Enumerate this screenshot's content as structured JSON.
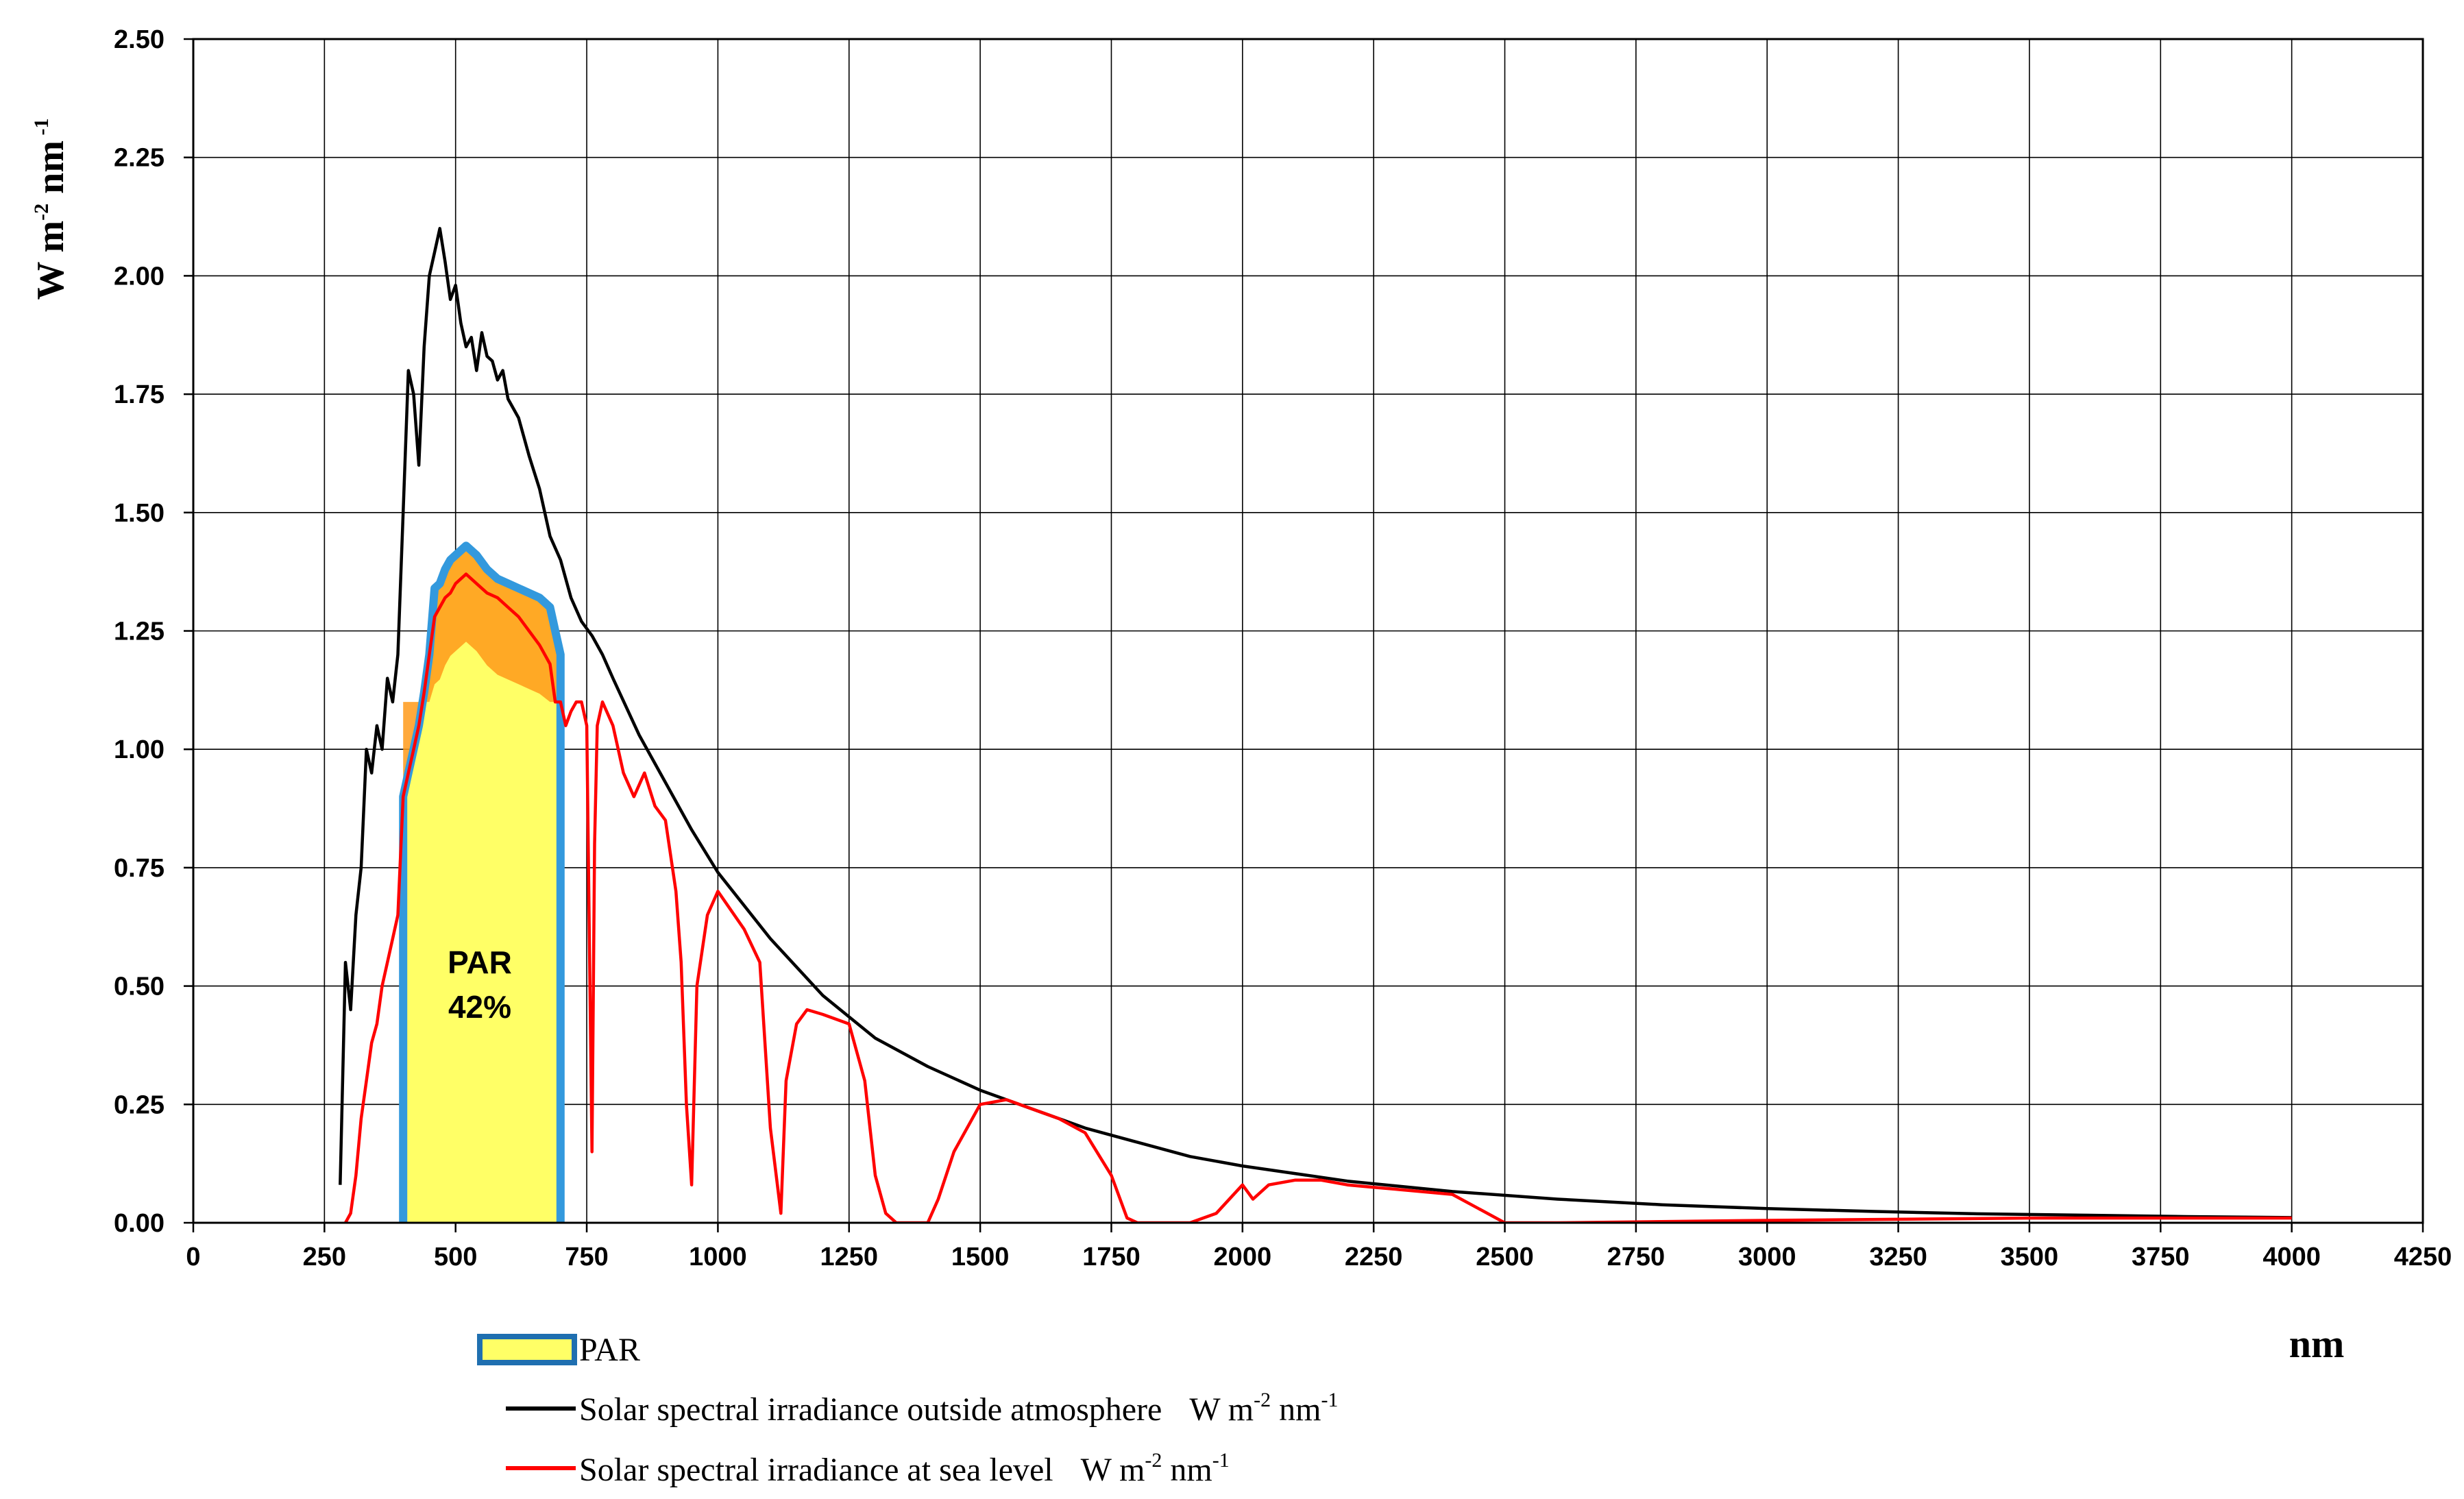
{
  "chart_data": {
    "type": "line",
    "xlabel": "nm",
    "ylabel": {
      "base1": "W m",
      "sup1": "-2",
      "base2": " nm",
      "sup2": " -1"
    },
    "xlim": [
      0,
      4250
    ],
    "ylim": [
      0,
      2.5
    ],
    "xticks": [
      "0",
      "250",
      "500",
      "750",
      "1000",
      "1250",
      "1500",
      "1750",
      "2000",
      "2250",
      "2500",
      "2750",
      "3000",
      "3250",
      "3500",
      "3750",
      "4000",
      "4250"
    ],
    "yticks": [
      "0.00",
      "0.25",
      "0.50",
      "0.75",
      "1.00",
      "1.25",
      "1.50",
      "1.75",
      "2.00",
      "2.25",
      "2.50"
    ],
    "grid": true,
    "legend_position": "bottom",
    "annotation": {
      "line1": "PAR",
      "line2": "42%"
    },
    "par_band": {
      "x_start": 400,
      "x_end": 700,
      "fill": "#ffff66",
      "border": "#3399dd"
    },
    "legend": [
      {
        "key": "par",
        "text": "PAR",
        "unit_base1": "",
        "unit_sup1": "",
        "unit_base2": "",
        "unit_sup2": ""
      },
      {
        "key": "outside",
        "text": "Solar spectral irradiance outside atmosphere",
        "unit_base1": "W m",
        "unit_sup1": "-2",
        "unit_base2": " nm",
        "unit_sup2": "-1"
      },
      {
        "key": "sea",
        "text": "Solar spectral irradiance at sea level",
        "unit_base1": "W m",
        "unit_sup1": "-2",
        "unit_base2": " nm",
        "unit_sup2": "-1"
      }
    ],
    "series": [
      {
        "key": "outside",
        "color": "#000000",
        "x": [
          280,
          290,
          300,
          310,
          320,
          330,
          340,
          350,
          360,
          370,
          380,
          390,
          400,
          410,
          420,
          430,
          440,
          450,
          460,
          470,
          480,
          490,
          500,
          510,
          520,
          530,
          540,
          550,
          560,
          570,
          580,
          590,
          600,
          620,
          640,
          660,
          680,
          700,
          720,
          740,
          760,
          780,
          800,
          850,
          900,
          950,
          1000,
          1100,
          1200,
          1300,
          1400,
          1500,
          1600,
          1700,
          1800,
          1900,
          2000,
          2200,
          2400,
          2600,
          2800,
          3000,
          3200,
          3400,
          3600,
          3800,
          4000
        ],
        "y": [
          0.08,
          0.55,
          0.45,
          0.65,
          0.75,
          1.0,
          0.95,
          1.05,
          1.0,
          1.15,
          1.1,
          1.2,
          1.5,
          1.8,
          1.75,
          1.6,
          1.85,
          2.0,
          2.05,
          2.1,
          2.03,
          1.95,
          1.98,
          1.9,
          1.85,
          1.87,
          1.8,
          1.88,
          1.83,
          1.82,
          1.78,
          1.8,
          1.74,
          1.7,
          1.62,
          1.55,
          1.45,
          1.4,
          1.32,
          1.27,
          1.24,
          1.2,
          1.15,
          1.03,
          0.93,
          0.83,
          0.74,
          0.6,
          0.48,
          0.39,
          0.33,
          0.28,
          0.24,
          0.2,
          0.17,
          0.14,
          0.12,
          0.088,
          0.066,
          0.05,
          0.038,
          0.03,
          0.024,
          0.019,
          0.016,
          0.013,
          0.011
        ]
      },
      {
        "key": "sea",
        "color": "#ff0000",
        "x": [
          290,
          300,
          310,
          320,
          330,
          340,
          350,
          360,
          370,
          380,
          390,
          400,
          410,
          420,
          430,
          440,
          450,
          460,
          470,
          480,
          490,
          500,
          520,
          540,
          560,
          580,
          600,
          620,
          640,
          660,
          680,
          690,
          700,
          710,
          720,
          730,
          740,
          750,
          755,
          760,
          765,
          770,
          780,
          800,
          820,
          840,
          860,
          880,
          900,
          920,
          930,
          940,
          950,
          960,
          980,
          1000,
          1050,
          1080,
          1100,
          1120,
          1130,
          1150,
          1170,
          1200,
          1250,
          1280,
          1300,
          1320,
          1340,
          1350,
          1380,
          1400,
          1420,
          1450,
          1500,
          1550,
          1600,
          1650,
          1700,
          1750,
          1780,
          1800,
          1850,
          1900,
          1950,
          2000,
          2020,
          2050,
          2100,
          2150,
          2200,
          2250,
          2300,
          2400,
          2450,
          2500,
          2600,
          3000,
          3500,
          4000
        ],
        "y": [
          0.0,
          0.02,
          0.1,
          0.22,
          0.3,
          0.38,
          0.42,
          0.5,
          0.55,
          0.6,
          0.65,
          0.9,
          0.95,
          1.0,
          1.05,
          1.12,
          1.2,
          1.28,
          1.3,
          1.32,
          1.33,
          1.35,
          1.37,
          1.35,
          1.33,
          1.32,
          1.3,
          1.28,
          1.25,
          1.22,
          1.18,
          1.1,
          1.1,
          1.05,
          1.08,
          1.1,
          1.1,
          1.05,
          0.6,
          0.15,
          0.8,
          1.05,
          1.1,
          1.05,
          0.95,
          0.9,
          0.95,
          0.88,
          0.85,
          0.7,
          0.55,
          0.25,
          0.08,
          0.5,
          0.65,
          0.7,
          0.62,
          0.55,
          0.2,
          0.02,
          0.3,
          0.42,
          0.45,
          0.44,
          0.42,
          0.3,
          0.1,
          0.02,
          0.0,
          0.0,
          0.0,
          0.0,
          0.05,
          0.15,
          0.25,
          0.26,
          0.24,
          0.22,
          0.19,
          0.1,
          0.01,
          0.0,
          0.0,
          0.0,
          0.02,
          0.08,
          0.05,
          0.08,
          0.09,
          0.09,
          0.08,
          0.075,
          0.07,
          0.06,
          0.03,
          0.0,
          0.0,
          0.005,
          0.01,
          0.01
        ]
      },
      {
        "key": "par-top",
        "color": "#ff8800",
        "x": [
          400,
          410,
          420,
          430,
          440,
          450,
          460,
          470,
          480,
          490,
          500,
          520,
          540,
          560,
          580,
          600,
          620,
          640,
          660,
          680,
          690,
          700
        ],
        "y": [
          0.9,
          0.95,
          1.0,
          1.05,
          1.12,
          1.2,
          1.34,
          1.35,
          1.38,
          1.4,
          1.41,
          1.43,
          1.41,
          1.38,
          1.36,
          1.35,
          1.34,
          1.33,
          1.32,
          1.3,
          1.25,
          1.2
        ]
      }
    ]
  }
}
